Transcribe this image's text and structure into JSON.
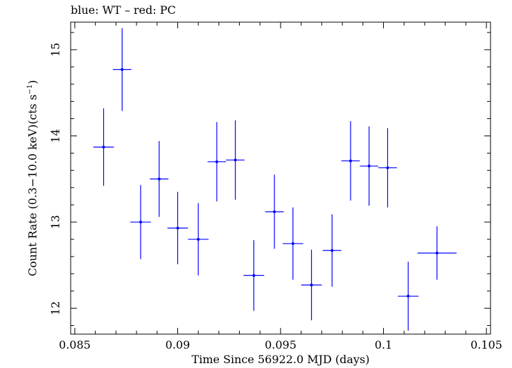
{
  "chart_data": {
    "type": "scatter",
    "title": "blue: WT – red: PC",
    "xlabel": "Time Since 56922.0 MJD (days)",
    "ylabel_parts": {
      "main": "Count Rate (0.3−10.0 keV)(cts s",
      "sup": "−1",
      "tail": ")"
    },
    "xlim": [
      0.0848,
      0.1052
    ],
    "ylim": [
      11.7,
      15.32
    ],
    "x_ticks": [
      {
        "value": 0.085,
        "label": "0.085"
      },
      {
        "value": 0.09,
        "label": "0.09"
      },
      {
        "value": 0.095,
        "label": "0.095"
      },
      {
        "value": 0.1,
        "label": "0.1"
      },
      {
        "value": 0.105,
        "label": "0.105"
      }
    ],
    "y_ticks": [
      {
        "value": 12,
        "label": "12"
      },
      {
        "value": 13,
        "label": "13"
      },
      {
        "value": 14,
        "label": "14"
      },
      {
        "value": 15,
        "label": "15"
      }
    ],
    "grid": false,
    "series": [
      {
        "mode": "WT",
        "color": "#0000ff",
        "points": [
          {
            "x": 0.0864,
            "xerr": 0.0005,
            "y": 13.87,
            "yerr": 0.45
          },
          {
            "x": 0.0873,
            "xerr": 0.00045,
            "y": 14.77,
            "yerr": 0.48
          },
          {
            "x": 0.0882,
            "xerr": 0.0005,
            "y": 13.0,
            "yerr": 0.43
          },
          {
            "x": 0.0891,
            "xerr": 0.00045,
            "y": 13.5,
            "yerr": 0.44
          },
          {
            "x": 0.09,
            "xerr": 0.0005,
            "y": 12.93,
            "yerr": 0.42
          },
          {
            "x": 0.091,
            "xerr": 0.0005,
            "y": 12.8,
            "yerr": 0.42
          },
          {
            "x": 0.0919,
            "xerr": 0.00045,
            "y": 13.7,
            "yerr": 0.46
          },
          {
            "x": 0.0928,
            "xerr": 0.00045,
            "y": 13.72,
            "yerr": 0.46
          },
          {
            "x": 0.0937,
            "xerr": 0.0005,
            "y": 12.38,
            "yerr": 0.41
          },
          {
            "x": 0.0947,
            "xerr": 0.00045,
            "y": 13.12,
            "yerr": 0.43
          },
          {
            "x": 0.0956,
            "xerr": 0.0005,
            "y": 12.75,
            "yerr": 0.42
          },
          {
            "x": 0.0965,
            "xerr": 0.0005,
            "y": 12.27,
            "yerr": 0.41
          },
          {
            "x": 0.0975,
            "xerr": 0.00045,
            "y": 12.67,
            "yerr": 0.42
          },
          {
            "x": 0.0984,
            "xerr": 0.00045,
            "y": 13.71,
            "yerr": 0.46
          },
          {
            "x": 0.0993,
            "xerr": 0.00045,
            "y": 13.65,
            "yerr": 0.46
          },
          {
            "x": 0.1002,
            "xerr": 0.00045,
            "y": 13.63,
            "yerr": 0.46
          },
          {
            "x": 0.1012,
            "xerr": 0.0005,
            "y": 12.14,
            "yerr": 0.4
          },
          {
            "x": 0.1026,
            "xerr": 0.00095,
            "y": 12.64,
            "yerr": 0.31
          }
        ]
      }
    ]
  }
}
